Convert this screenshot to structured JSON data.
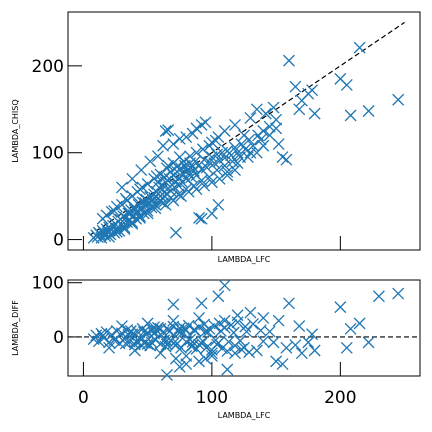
{
  "colors": {
    "marker": "#1f77b4",
    "reference_line": "#000000"
  },
  "chart_data": [
    {
      "type": "scatter",
      "marker": "x",
      "xlabel": "LAMBDA_LFC",
      "ylabel": "LAMBDA_CHISQ",
      "xlim": [
        -12,
        262
      ],
      "ylim": [
        -12,
        262
      ],
      "xticks": [
        0,
        100,
        200
      ],
      "xtick_labels_shown": false,
      "yticks": [
        0,
        100,
        200
      ],
      "ytick_labels": [
        "0",
        "100",
        "200"
      ],
      "reference_line": {
        "style": "dashed",
        "slope": 1,
        "intercept": 0,
        "x_range": [
          5,
          250
        ]
      },
      "points": [
        [
          8,
          2
        ],
        [
          10,
          5
        ],
        [
          11,
          3
        ],
        [
          12,
          8
        ],
        [
          13,
          6
        ],
        [
          14,
          2
        ],
        [
          15,
          10
        ],
        [
          16,
          7
        ],
        [
          17,
          4
        ],
        [
          18,
          12
        ],
        [
          19,
          9
        ],
        [
          20,
          14
        ],
        [
          21,
          6
        ],
        [
          22,
          11
        ],
        [
          23,
          16
        ],
        [
          24,
          8
        ],
        [
          25,
          18
        ],
        [
          26,
          13
        ],
        [
          27,
          21
        ],
        [
          28,
          10
        ],
        [
          29,
          23
        ],
        [
          30,
          17
        ],
        [
          31,
          27
        ],
        [
          32,
          14
        ],
        [
          33,
          25
        ],
        [
          34,
          20
        ],
        [
          35,
          30
        ],
        [
          36,
          22
        ],
        [
          37,
          34
        ],
        [
          38,
          18
        ],
        [
          39,
          28
        ],
        [
          40,
          37
        ],
        [
          41,
          24
        ],
        [
          42,
          32
        ],
        [
          43,
          40
        ],
        [
          44,
          27
        ],
        [
          45,
          35
        ],
        [
          46,
          43
        ],
        [
          47,
          30
        ],
        [
          48,
          39
        ],
        [
          49,
          46
        ],
        [
          50,
          33
        ],
        [
          51,
          42
        ],
        [
          52,
          49
        ],
        [
          53,
          37
        ],
        [
          54,
          45
        ],
        [
          55,
          52
        ],
        [
          56,
          40
        ],
        [
          57,
          55
        ],
        [
          58,
          47
        ],
        [
          59,
          60
        ],
        [
          60,
          44
        ],
        [
          61,
          57
        ],
        [
          62,
          62
        ],
        [
          63,
          50
        ],
        [
          64,
          66
        ],
        [
          65,
          53
        ],
        [
          66,
          59
        ],
        [
          67,
          70
        ],
        [
          68,
          56
        ],
        [
          69,
          63
        ],
        [
          70,
          74
        ],
        [
          71,
          60
        ],
        [
          72,
          67
        ],
        [
          73,
          78
        ],
        [
          74,
          62
        ],
        [
          75,
          71
        ],
        [
          76,
          82
        ],
        [
          77,
          66
        ],
        [
          78,
          75
        ],
        [
          79,
          85
        ],
        [
          80,
          70
        ],
        [
          81,
          80
        ],
        [
          82,
          76
        ],
        [
          83,
          88
        ],
        [
          84,
          72
        ],
        [
          85,
          84
        ],
        [
          86,
          79
        ],
        [
          87,
          90
        ],
        [
          88,
          74
        ],
        [
          90,
          86
        ],
        [
          92,
          81
        ],
        [
          94,
          92
        ],
        [
          96,
          83
        ],
        [
          98,
          89
        ],
        [
          100,
          95
        ],
        [
          102,
          88
        ],
        [
          104,
          98
        ],
        [
          106,
          91
        ],
        [
          108,
          100
        ],
        [
          110,
          94
        ],
        [
          112,
          102
        ],
        [
          115,
          97
        ],
        [
          118,
          106
        ],
        [
          120,
          100
        ],
        [
          123,
          110
        ],
        [
          126,
          104
        ],
        [
          129,
          115
        ],
        [
          132,
          108
        ],
        [
          136,
          120
        ],
        [
          18,
          28
        ],
        [
          22,
          32
        ],
        [
          26,
          38
        ],
        [
          30,
          40
        ],
        [
          34,
          45
        ],
        [
          38,
          50
        ],
        [
          42,
          55
        ],
        [
          46,
          60
        ],
        [
          50,
          64
        ],
        [
          55,
          70
        ],
        [
          60,
          75
        ],
        [
          65,
          82
        ],
        [
          70,
          88
        ],
        [
          75,
          95
        ],
        [
          15,
          24
        ],
        [
          24,
          33
        ],
        [
          33,
          47
        ],
        [
          44,
          58
        ],
        [
          57,
          73
        ],
        [
          66,
          85
        ],
        [
          20,
          3
        ],
        [
          26,
          9
        ],
        [
          32,
          12
        ],
        [
          38,
          20
        ],
        [
          44,
          25
        ],
        [
          50,
          30
        ],
        [
          56,
          36
        ],
        [
          62,
          42
        ],
        [
          68,
          48
        ],
        [
          74,
          52
        ],
        [
          80,
          58
        ],
        [
          86,
          62
        ],
        [
          92,
          68
        ],
        [
          98,
          72
        ],
        [
          104,
          80
        ],
        [
          110,
          85
        ],
        [
          116,
          90
        ],
        [
          122,
          95
        ],
        [
          130,
          100
        ],
        [
          140,
          108
        ],
        [
          30,
          60
        ],
        [
          38,
          70
        ],
        [
          45,
          80
        ],
        [
          52,
          90
        ],
        [
          58,
          96
        ],
        [
          62,
          108
        ],
        [
          64,
          125
        ],
        [
          66,
          126
        ],
        [
          70,
          110
        ],
        [
          75,
          116
        ],
        [
          80,
          118
        ],
        [
          85,
          122
        ],
        [
          88,
          128
        ],
        [
          92,
          132
        ],
        [
          95,
          135
        ],
        [
          100,
          112
        ],
        [
          105,
          118
        ],
        [
          110,
          125
        ],
        [
          118,
          132
        ],
        [
          125,
          120
        ],
        [
          130,
          140
        ],
        [
          135,
          150
        ],
        [
          142,
          145
        ],
        [
          145,
          130
        ],
        [
          148,
          152
        ],
        [
          150,
          138
        ],
        [
          152,
          110
        ],
        [
          155,
          95
        ],
        [
          158,
          92
        ],
        [
          160,
          206
        ],
        [
          165,
          176
        ],
        [
          168,
          150
        ],
        [
          170,
          160
        ],
        [
          175,
          168
        ],
        [
          178,
          172
        ],
        [
          180,
          145
        ],
        [
          200,
          185
        ],
        [
          205,
          178
        ],
        [
          208,
          143
        ],
        [
          215,
          221
        ],
        [
          222,
          148
        ],
        [
          245,
          161
        ],
        [
          140,
          125
        ],
        [
          138,
          115
        ],
        [
          145,
          120
        ],
        [
          150,
          128
        ],
        [
          135,
          100
        ],
        [
          128,
          95
        ],
        [
          120,
          88
        ],
        [
          112,
          78
        ],
        [
          90,
          25
        ],
        [
          92,
          24
        ],
        [
          100,
          30
        ],
        [
          105,
          40
        ],
        [
          72,
          8
        ],
        [
          60,
          50
        ],
        [
          55,
          48
        ],
        [
          48,
          42
        ],
        [
          40,
          34
        ],
        [
          36,
          30
        ],
        [
          58,
          66
        ],
        [
          63,
          72
        ],
        [
          68,
          78
        ],
        [
          73,
          84
        ],
        [
          78,
          90
        ],
        [
          83,
          96
        ],
        [
          88,
          100
        ],
        [
          93,
          104
        ],
        [
          98,
          108
        ],
        [
          103,
          114
        ],
        [
          64,
          40
        ],
        [
          70,
          45
        ],
        [
          76,
          50
        ],
        [
          82,
          55
        ],
        [
          88,
          58
        ],
        [
          94,
          62
        ],
        [
          100,
          66
        ],
        [
          106,
          70
        ],
        [
          112,
          74
        ],
        [
          118,
          80
        ]
      ]
    },
    {
      "type": "scatter",
      "marker": "x",
      "xlabel": "LAMBDA_LFC",
      "ylabel": "LAMBDA_DIFF",
      "xlim": [
        -12,
        262
      ],
      "ylim": [
        -72,
        105
      ],
      "xticks": [
        0,
        100,
        200
      ],
      "xtick_labels": [
        "0",
        "100",
        "200"
      ],
      "yticks": [
        0,
        100
      ],
      "ytick_labels": [
        "0",
        "100"
      ],
      "reference_line": {
        "style": "dashed",
        "y": 0
      },
      "points": [
        [
          8,
          -4
        ],
        [
          10,
          3
        ],
        [
          12,
          -8
        ],
        [
          14,
          6
        ],
        [
          16,
          -2
        ],
        [
          18,
          9
        ],
        [
          20,
          -10
        ],
        [
          22,
          4
        ],
        [
          24,
          -6
        ],
        [
          26,
          11
        ],
        [
          28,
          -12
        ],
        [
          30,
          7
        ],
        [
          32,
          -4
        ],
        [
          34,
          13
        ],
        [
          36,
          -9
        ],
        [
          38,
          5
        ],
        [
          40,
          -14
        ],
        [
          42,
          10
        ],
        [
          44,
          -3
        ],
        [
          46,
          15
        ],
        [
          48,
          -11
        ],
        [
          50,
          8
        ],
        [
          52,
          -16
        ],
        [
          54,
          12
        ],
        [
          56,
          -5
        ],
        [
          58,
          17
        ],
        [
          60,
          -13
        ],
        [
          62,
          9
        ],
        [
          64,
          -18
        ],
        [
          66,
          14
        ],
        [
          68,
          -7
        ],
        [
          70,
          19
        ],
        [
          72,
          -15
        ],
        [
          74,
          11
        ],
        [
          76,
          -20
        ],
        [
          78,
          16
        ],
        [
          80,
          -9
        ],
        [
          82,
          21
        ],
        [
          84,
          -17
        ],
        [
          86,
          13
        ],
        [
          88,
          -22
        ],
        [
          90,
          18
        ],
        [
          92,
          -12
        ],
        [
          94,
          23
        ],
        [
          96,
          -19
        ],
        [
          98,
          15
        ],
        [
          100,
          -24
        ],
        [
          102,
          20
        ],
        [
          104,
          -14
        ],
        [
          106,
          25
        ],
        [
          108,
          -21
        ],
        [
          110,
          17
        ],
        [
          112,
          -26
        ],
        [
          115,
          22
        ],
        [
          118,
          -16
        ],
        [
          120,
          27
        ],
        [
          123,
          -23
        ],
        [
          126,
          19
        ],
        [
          129,
          -28
        ],
        [
          132,
          24
        ],
        [
          15,
          2
        ],
        [
          25,
          -3
        ],
        [
          35,
          4
        ],
        [
          45,
          -5
        ],
        [
          55,
          6
        ],
        [
          65,
          -7
        ],
        [
          75,
          8
        ],
        [
          85,
          -9
        ],
        [
          95,
          10
        ],
        [
          105,
          -11
        ],
        [
          20,
          -20
        ],
        [
          30,
          20
        ],
        [
          40,
          -25
        ],
        [
          50,
          25
        ],
        [
          60,
          -30
        ],
        [
          70,
          30
        ],
        [
          80,
          -35
        ],
        [
          90,
          35
        ],
        [
          100,
          -30
        ],
        [
          110,
          30
        ],
        [
          65,
          -70
        ],
        [
          72,
          -40
        ],
        [
          70,
          60
        ],
        [
          75,
          -55
        ],
        [
          80,
          -50
        ],
        [
          90,
          -45
        ],
        [
          92,
          62
        ],
        [
          95,
          -40
        ],
        [
          100,
          -35
        ],
        [
          105,
          75
        ],
        [
          110,
          95
        ],
        [
          112,
          -60
        ],
        [
          118,
          -30
        ],
        [
          120,
          40
        ],
        [
          125,
          -20
        ],
        [
          130,
          45
        ],
        [
          135,
          -25
        ],
        [
          140,
          35
        ],
        [
          145,
          10
        ],
        [
          148,
          -10
        ],
        [
          150,
          -45
        ],
        [
          152,
          30
        ],
        [
          155,
          -50
        ],
        [
          158,
          -20
        ],
        [
          160,
          62
        ],
        [
          165,
          -15
        ],
        [
          168,
          20
        ],
        [
          170,
          -30
        ],
        [
          175,
          -10
        ],
        [
          178,
          5
        ],
        [
          180,
          -25
        ],
        [
          200,
          55
        ],
        [
          205,
          -20
        ],
        [
          208,
          15
        ],
        [
          215,
          25
        ],
        [
          222,
          -10
        ],
        [
          245,
          80
        ],
        [
          230,
          75
        ],
        [
          140,
          -8
        ],
        [
          138,
          12
        ],
        [
          33,
          -12
        ],
        [
          37,
          11
        ],
        [
          41,
          -8
        ],
        [
          47,
          9
        ],
        [
          53,
          -10
        ],
        [
          57,
          12
        ],
        [
          63,
          -6
        ],
        [
          67,
          10
        ],
        [
          73,
          -12
        ],
        [
          77,
          7
        ],
        [
          83,
          -5
        ],
        [
          87,
          12
        ],
        [
          93,
          -8
        ],
        [
          97,
          9
        ],
        [
          103,
          -6
        ],
        [
          107,
          11
        ],
        [
          113,
          -9
        ],
        [
          117,
          8
        ],
        [
          122,
          -7
        ],
        [
          127,
          10
        ],
        [
          45,
          -15
        ],
        [
          50,
          -13
        ],
        [
          55,
          18
        ],
        [
          60,
          15
        ],
        [
          65,
          -14
        ],
        [
          70,
          -12
        ],
        [
          75,
          16
        ],
        [
          80,
          13
        ],
        [
          85,
          -16
        ],
        [
          90,
          -14
        ]
      ]
    }
  ]
}
